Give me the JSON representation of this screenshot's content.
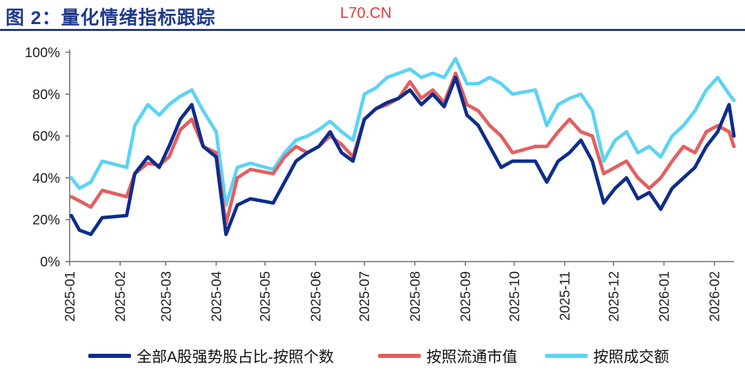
{
  "header": {
    "title": "图 2：量化情绪指标跟踪",
    "watermark": "L70.CN"
  },
  "chart_data": {
    "type": "line",
    "title": "",
    "xlabel": "",
    "ylabel": "",
    "ylim": [
      0,
      100
    ],
    "yticks": [
      "0%",
      "20%",
      "40%",
      "60%",
      "80%",
      "100%"
    ],
    "xticks": [
      "2025-01",
      "2025-02",
      "2025-03",
      "2025-04",
      "2025-05",
      "2025-06",
      "2025-07",
      "2025-08",
      "2025-09",
      "2025-10",
      "2025-11",
      "2025-12",
      "2026-01",
      "2026-02"
    ],
    "x": [
      "2025-01-02",
      "2025-01-07",
      "2025-01-14",
      "2025-01-21",
      "2025-02-05",
      "2025-02-10",
      "2025-02-18",
      "2025-02-25",
      "2025-03-03",
      "2025-03-10",
      "2025-03-17",
      "2025-03-24",
      "2025-04-01",
      "2025-04-07",
      "2025-04-14",
      "2025-04-22",
      "2025-05-06",
      "2025-05-13",
      "2025-05-20",
      "2025-05-27",
      "2025-06-03",
      "2025-06-10",
      "2025-06-17",
      "2025-06-24",
      "2025-07-01",
      "2025-07-08",
      "2025-07-15",
      "2025-07-22",
      "2025-07-29",
      "2025-08-05",
      "2025-08-12",
      "2025-08-19",
      "2025-08-26",
      "2025-09-02",
      "2025-09-09",
      "2025-09-16",
      "2025-09-23",
      "2025-09-30",
      "2025-10-14",
      "2025-10-21",
      "2025-10-28",
      "2025-11-04",
      "2025-11-11",
      "2025-11-18",
      "2025-11-25",
      "2025-12-02",
      "2025-12-09",
      "2025-12-16",
      "2025-12-23",
      "2025-12-30",
      "2026-01-06",
      "2026-01-13",
      "2026-01-20",
      "2026-01-27",
      "2026-02-03",
      "2026-02-10",
      "2026-02-13"
    ],
    "series": [
      {
        "name": "全部A股强势股占比-按照个数",
        "color": "#0d2d8c",
        "width": 5,
        "values": [
          22,
          15,
          13,
          21,
          22,
          42,
          50,
          45,
          55,
          68,
          75,
          55,
          50,
          13,
          27,
          30,
          28,
          38,
          48,
          52,
          55,
          62,
          52,
          48,
          68,
          73,
          76,
          78,
          82,
          75,
          80,
          74,
          88,
          70,
          65,
          55,
          45,
          48,
          48,
          38,
          48,
          52,
          58,
          48,
          28,
          35,
          40,
          30,
          33,
          25,
          35,
          40,
          45,
          55,
          62,
          75,
          60
        ]
      },
      {
        "name": "按照流通市值",
        "color": "#e45f5f",
        "width": 5,
        "values": [
          31,
          29,
          26,
          34,
          31,
          42,
          47,
          46,
          50,
          63,
          68,
          55,
          52,
          18,
          40,
          44,
          42,
          50,
          55,
          52,
          55,
          60,
          56,
          50,
          68,
          73,
          75,
          78,
          86,
          78,
          82,
          76,
          90,
          75,
          72,
          65,
          60,
          52,
          55,
          55,
          62,
          68,
          62,
          60,
          42,
          45,
          48,
          40,
          35,
          40,
          48,
          55,
          52,
          62,
          65,
          62,
          55
        ]
      },
      {
        "name": "按照成交额",
        "color": "#5bd3f5",
        "width": 5,
        "values": [
          40,
          35,
          38,
          48,
          45,
          65,
          75,
          70,
          75,
          79,
          82,
          72,
          62,
          27,
          45,
          47,
          44,
          52,
          58,
          60,
          63,
          67,
          62,
          58,
          80,
          83,
          88,
          90,
          92,
          88,
          90,
          88,
          97,
          85,
          85,
          88,
          85,
          80,
          82,
          65,
          75,
          78,
          80,
          72,
          48,
          58,
          62,
          52,
          55,
          50,
          60,
          65,
          72,
          82,
          88,
          80,
          77
        ]
      }
    ]
  },
  "legend": [
    {
      "label": "全部A股强势股占比-按照个数",
      "color": "#0d2d8c"
    },
    {
      "label": "按照流通市值",
      "color": "#e45f5f"
    },
    {
      "label": "按照成交额",
      "color": "#5bd3f5"
    }
  ]
}
